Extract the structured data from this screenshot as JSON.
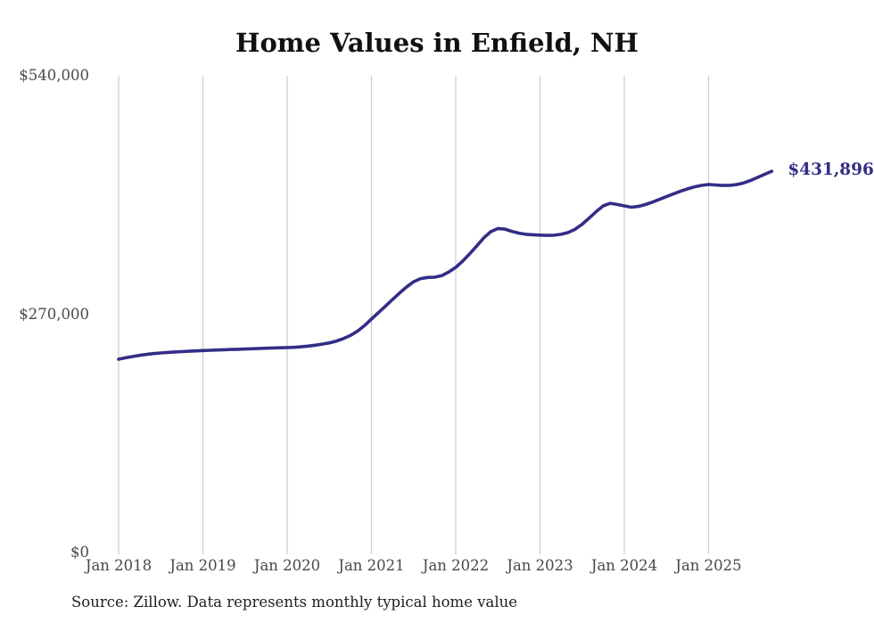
{
  "title": "Home Values in Enfield, NH",
  "source_note": "Source: Zillow. Data represents monthly typical home value",
  "colors": {
    "line": "#332d87",
    "end_label": "#332d87",
    "gridline": "#cccccc",
    "title": "#111111",
    "axis_label": "#4a4a4a",
    "source": "#1e1e1e",
    "background": "#ffffff"
  },
  "chart_data": {
    "type": "line",
    "title": "Home Values in Enfield, NH",
    "xlabel": "",
    "ylabel": "",
    "grid": "vertical-only",
    "legend": "none",
    "ylim": [
      0,
      540000
    ],
    "y_ticks": [
      {
        "label": "$540,000",
        "value": 540000
      },
      {
        "label": "$270,000",
        "value": 270000
      },
      {
        "label": "$0",
        "value": 0
      }
    ],
    "x_tick_labels": [
      "Jan 2018",
      "Jan 2019",
      "Jan 2020",
      "Jan 2021",
      "Jan 2022",
      "Jan 2023",
      "Jan 2024",
      "Jan 2025"
    ],
    "final_value": 431896,
    "final_value_label": "$431,896",
    "series": [
      {
        "name": "Monthly typical home value",
        "start": "Jan 2018",
        "end": "Oct 2025",
        "interval": "monthly",
        "values": [
          219000,
          220600,
          222100,
          223400,
          224500,
          225400,
          226100,
          226700,
          227200,
          227600,
          228000,
          228400,
          228800,
          229100,
          229400,
          229700,
          230000,
          230200,
          230500,
          230800,
          231100,
          231400,
          231700,
          231900,
          232100,
          232500,
          233100,
          233900,
          234900,
          236100,
          237500,
          239500,
          242300,
          245900,
          250700,
          257000,
          264400,
          271800,
          279200,
          286600,
          293900,
          300800,
          306700,
          310300,
          311600,
          311900,
          313600,
          317700,
          323000,
          330200,
          338500,
          347300,
          356500,
          363500,
          367000,
          366300,
          363800,
          361800,
          360400,
          359900,
          359500,
          359200,
          359400,
          360400,
          362500,
          366200,
          371800,
          378800,
          386200,
          392600,
          395600,
          394300,
          392600,
          391100,
          392000,
          394100,
          396900,
          400000,
          403100,
          406200,
          409200,
          411900,
          414200,
          415900,
          416900,
          416300,
          415800,
          415900,
          416800,
          418700,
          421500,
          424900,
          428500,
          431896
        ]
      }
    ]
  }
}
